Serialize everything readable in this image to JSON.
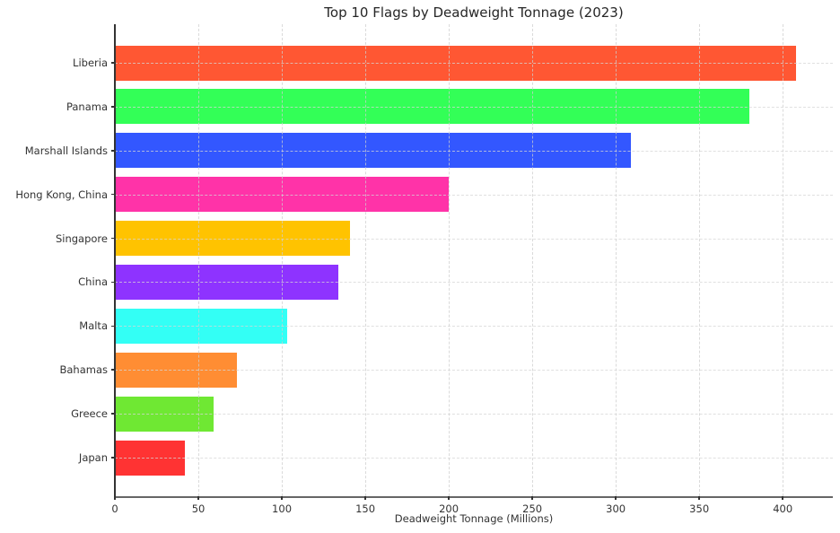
{
  "chart_data": {
    "type": "bar",
    "orientation": "horizontal",
    "title": "Top 10 Flags by Deadweight Tonnage (2023)",
    "xlabel": "Deadweight Tonnage (Millions)",
    "ylabel": "",
    "categories": [
      "Liberia",
      "Panama",
      "Marshall Islands",
      "Hong Kong, China",
      "Singapore",
      "China",
      "Malta",
      "Bahamas",
      "Greece",
      "Japan"
    ],
    "values": [
      408,
      380,
      309,
      200,
      141,
      134,
      103,
      73,
      59,
      42
    ],
    "bar_colors": [
      "#FF5733",
      "#33FF57",
      "#3357FF",
      "#FF33A8",
      "#FFC300",
      "#8E33FF",
      "#33FFF5",
      "#FF8D33",
      "#6FE833",
      "#FF3333"
    ],
    "xlim": [
      0,
      430
    ],
    "xticks": [
      0,
      50,
      100,
      150,
      200,
      250,
      300,
      350,
      400
    ],
    "grid": "dashed, both axes, drawn over bars",
    "legend": "none",
    "background": "#ffffff",
    "text_color": "#333333"
  }
}
